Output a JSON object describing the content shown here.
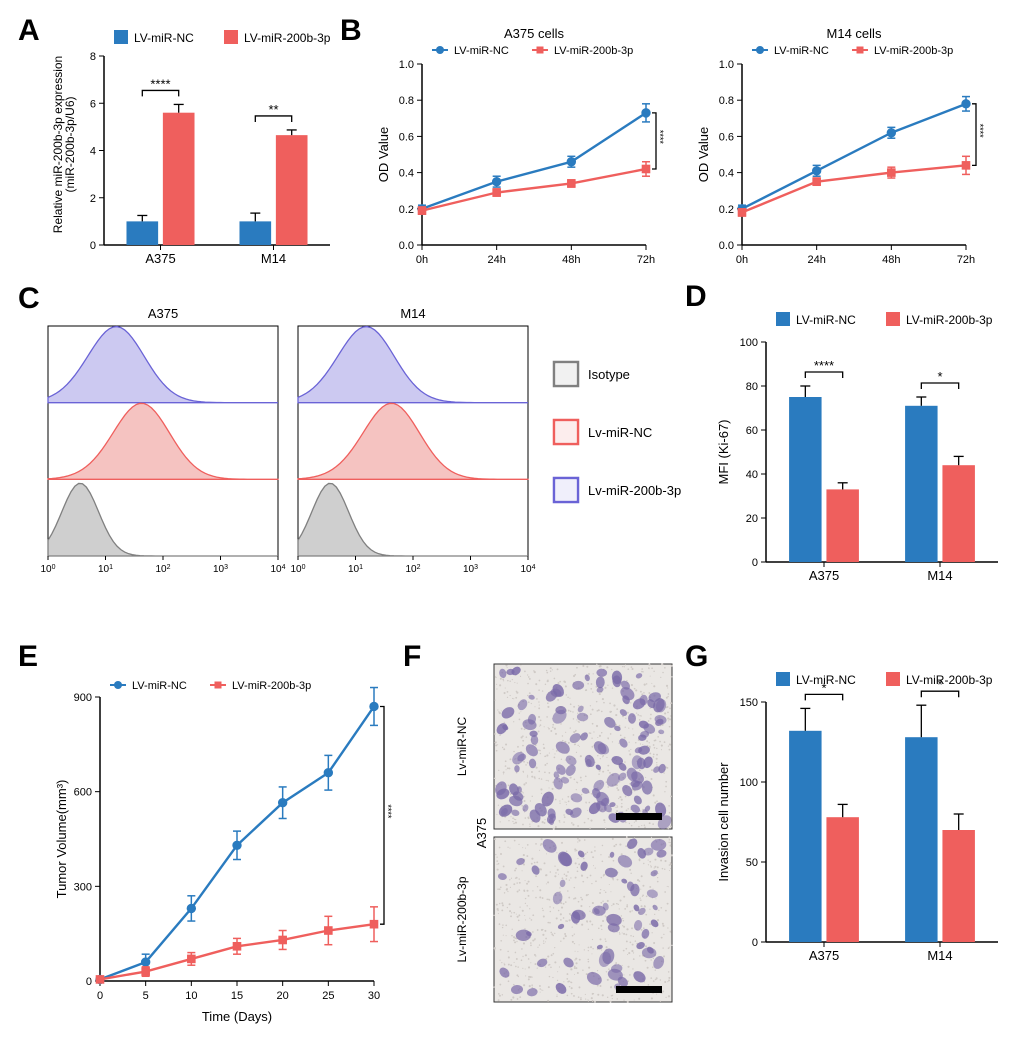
{
  "colors": {
    "nc": "#2a7bbf",
    "treat": "#ef5f5d",
    "isotype_fill": "#c7c7c7",
    "isotype_stroke": "#808080",
    "nc_fill_hist": "#f3b8b6",
    "nc_stroke_hist": "#ef5f5d",
    "treat_fill_hist": "#c3c0ef",
    "treat_stroke_hist": "#6a63d6",
    "axis": "#000000",
    "bg": "#ffffff"
  },
  "labels": {
    "panelA": "A",
    "panelB": "B",
    "panelC": "C",
    "panelD": "D",
    "panelE": "E",
    "panelF": "F",
    "panelG": "G"
  },
  "legend": {
    "nc": "LV-miR-NC",
    "treat": "LV-miR-200b-3p",
    "nc_lower": "Lv-miR-NC",
    "treat_lower": "Lv-miR-200b-3p",
    "isotype": "Isotype"
  },
  "panelA": {
    "ylabel_line1": "Relative miR-200b-3p expression",
    "ylabel_line2": "(miR-200b-3p/U6)",
    "ylim": [
      0,
      8
    ],
    "ytick_step": 2,
    "categories": [
      "A375",
      "M14"
    ],
    "series": [
      {
        "name": "nc",
        "values": [
          1.0,
          1.0
        ],
        "err": [
          0.25,
          0.35
        ]
      },
      {
        "name": "treat",
        "values": [
          5.6,
          4.65
        ],
        "err": [
          0.35,
          0.22
        ]
      }
    ],
    "sig": [
      "****",
      "**"
    ]
  },
  "panelB": {
    "left": {
      "title": "A375 cells",
      "xticks": [
        "0h",
        "24h",
        "48h",
        "72h"
      ],
      "ylim": [
        0.0,
        1.0
      ],
      "ytick_step": 0.2,
      "ylabel": "OD Value",
      "series": [
        {
          "name": "nc",
          "values": [
            0.2,
            0.35,
            0.46,
            0.73
          ],
          "err": [
            0.02,
            0.03,
            0.03,
            0.05
          ]
        },
        {
          "name": "treat",
          "values": [
            0.19,
            0.29,
            0.34,
            0.42
          ],
          "err": [
            0.02,
            0.02,
            0.02,
            0.04
          ]
        }
      ],
      "sig": "****"
    },
    "right": {
      "title": "M14 cells",
      "xticks": [
        "0h",
        "24h",
        "48h",
        "72h"
      ],
      "ylim": [
        0.0,
        1.0
      ],
      "ytick_step": 0.2,
      "ylabel": "OD Value",
      "series": [
        {
          "name": "nc",
          "values": [
            0.2,
            0.41,
            0.62,
            0.78
          ],
          "err": [
            0.02,
            0.03,
            0.03,
            0.04
          ]
        },
        {
          "name": "treat",
          "values": [
            0.18,
            0.35,
            0.4,
            0.44
          ],
          "err": [
            0.02,
            0.02,
            0.03,
            0.05
          ]
        }
      ],
      "sig": "****"
    }
  },
  "panelC": {
    "titles": [
      "A375",
      "M14"
    ],
    "xlog_ticks": [
      "10^0",
      "10^1",
      "10^2",
      "10^3",
      "10^4"
    ]
  },
  "panelD": {
    "ylabel": "MFI (Ki-67)",
    "ylim": [
      0,
      100
    ],
    "ytick_step": 20,
    "categories": [
      "A375",
      "M14"
    ],
    "series": [
      {
        "name": "nc",
        "values": [
          75,
          71
        ],
        "err": [
          5,
          4
        ]
      },
      {
        "name": "treat",
        "values": [
          33,
          44
        ],
        "err": [
          3,
          4
        ]
      }
    ],
    "sig": [
      "****",
      "*"
    ]
  },
  "panelE": {
    "ylabel": "Tumor Volume(mm³)",
    "xlabel": "Time (Days)",
    "xticks": [
      0,
      5,
      10,
      15,
      20,
      25,
      30
    ],
    "ylim": [
      0,
      900
    ],
    "ytick_step": 300,
    "series": [
      {
        "name": "nc",
        "values": [
          5,
          60,
          230,
          430,
          565,
          660,
          870
        ],
        "err": [
          0,
          25,
          40,
          45,
          50,
          55,
          60
        ]
      },
      {
        "name": "treat",
        "values": [
          5,
          30,
          70,
          110,
          130,
          160,
          180
        ],
        "err": [
          0,
          15,
          20,
          25,
          30,
          45,
          55
        ]
      }
    ],
    "sig": "****"
  },
  "panelF": {
    "top_label": "Lv-miR-NC",
    "bottom_label": "Lv-miR-200b-3p",
    "side_label": "A375"
  },
  "panelG": {
    "ylabel": "Invasion cell number",
    "ylim": [
      0,
      150
    ],
    "ytick_step": 50,
    "categories": [
      "A375",
      "M14"
    ],
    "series": [
      {
        "name": "nc",
        "values": [
          132,
          128
        ],
        "err": [
          14,
          20
        ]
      },
      {
        "name": "treat",
        "values": [
          78,
          70
        ],
        "err": [
          8,
          10
        ]
      }
    ],
    "sig": [
      "*",
      "*"
    ]
  }
}
